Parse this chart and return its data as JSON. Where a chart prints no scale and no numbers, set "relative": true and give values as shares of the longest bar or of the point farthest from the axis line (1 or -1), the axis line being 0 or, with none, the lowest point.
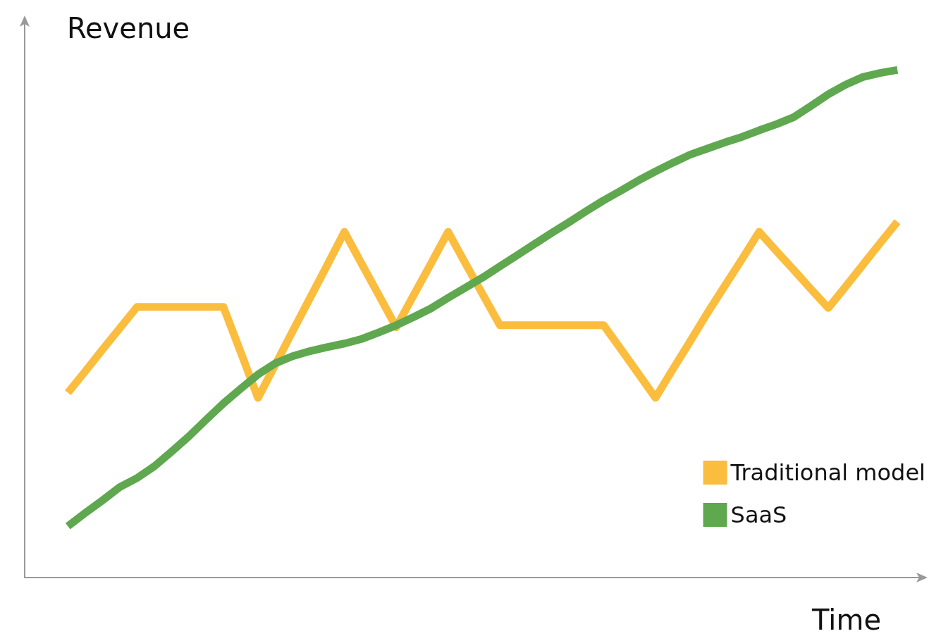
{
  "chart_data": {
    "type": "line",
    "relative": true,
    "xlabel": "Time",
    "ylabel": "Revenue",
    "grid": false,
    "legend": "bottom right",
    "marker": "none",
    "line_style": "solid",
    "categories": [
      null,
      null,
      null,
      null,
      null,
      null,
      null,
      null,
      null,
      null,
      null,
      null,
      null,
      null,
      null,
      null,
      null,
      null,
      null,
      null,
      null,
      null,
      null,
      null,
      null,
      null,
      null,
      null,
      null,
      null,
      null,
      null,
      null,
      null,
      null,
      null,
      null,
      null,
      null,
      null,
      null,
      null,
      null,
      null,
      null,
      null,
      null,
      null,
      null,
      null,
      null,
      null
    ],
    "series": [
      {
        "name": "Traditional model",
        "color": "#fbbd3e",
        "values": [
          null,
          null,
          0.364,
          0.406,
          0.449,
          0.491,
          0.533,
          0.533,
          0.533,
          0.533,
          0.533,
          0.533,
          0.444,
          0.354,
          0.419,
          0.485,
          0.55,
          0.615,
          0.681,
          0.618,
          0.556,
          0.493,
          0.556,
          0.618,
          0.681,
          0.619,
          0.558,
          0.497,
          0.497,
          0.497,
          0.497,
          0.497,
          0.497,
          0.497,
          0.45,
          0.402,
          0.354,
          0.41,
          0.465,
          0.521,
          0.574,
          0.627,
          0.681,
          0.643,
          0.606,
          0.568,
          0.531,
          0.573,
          0.616,
          0.659,
          0.701,
          null
        ]
      },
      {
        "name": "SaaS",
        "color": "#5fa84f",
        "values": [
          null,
          null,
          0.101,
          0.127,
          0.152,
          0.178,
          0.196,
          0.219,
          0.248,
          0.278,
          0.311,
          0.343,
          0.372,
          0.4,
          0.422,
          0.436,
          0.446,
          0.454,
          0.461,
          0.47,
          0.483,
          0.497,
          0.513,
          0.53,
          0.551,
          0.571,
          0.591,
          0.613,
          0.635,
          0.657,
          0.679,
          0.7,
          0.722,
          0.743,
          0.762,
          0.782,
          0.8,
          0.817,
          0.833,
          0.845,
          0.857,
          0.868,
          0.881,
          0.893,
          0.907,
          0.929,
          0.952,
          0.971,
          0.986,
          0.994,
          1,
          null
        ]
      }
    ]
  }
}
